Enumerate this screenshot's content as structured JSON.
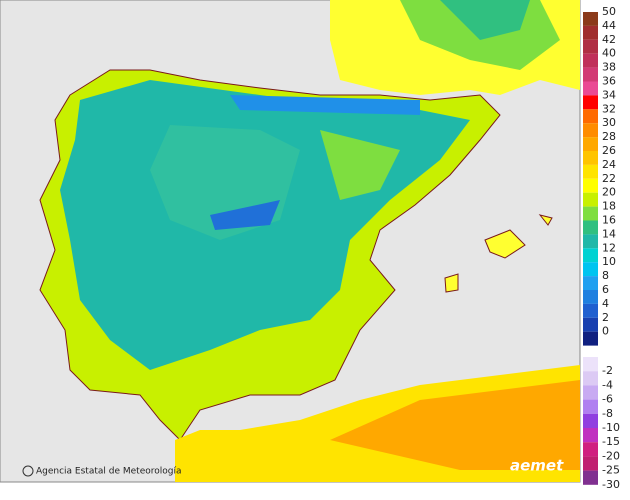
{
  "legend": {
    "positive": [
      {
        "label": 50,
        "color": "#8b3a1a"
      },
      {
        "label": 44,
        "color": "#a02e2e"
      },
      {
        "label": 42,
        "color": "#b02e44"
      },
      {
        "label": 40,
        "color": "#c0305a"
      },
      {
        "label": 38,
        "color": "#d23a74"
      },
      {
        "label": 36,
        "color": "#ea4a94"
      },
      {
        "label": 34,
        "color": "#ff0000"
      },
      {
        "label": 32,
        "color": "#ff6a00"
      },
      {
        "label": 30,
        "color": "#ff8c00"
      },
      {
        "label": 28,
        "color": "#ffa800"
      },
      {
        "label": 26,
        "color": "#ffc400"
      },
      {
        "label": 24,
        "color": "#ffe400"
      },
      {
        "label": 22,
        "color": "#ffff00"
      },
      {
        "label": 20,
        "color": "#c8f000"
      },
      {
        "label": 18,
        "color": "#7ede40"
      },
      {
        "label": 16,
        "color": "#30c080"
      },
      {
        "label": 14,
        "color": "#20b8a8"
      },
      {
        "label": 12,
        "color": "#00d2d2"
      },
      {
        "label": 10,
        "color": "#00c4f0"
      },
      {
        "label": 8,
        "color": "#20a0f0"
      },
      {
        "label": 6,
        "color": "#2080e0"
      },
      {
        "label": 4,
        "color": "#2060d0"
      },
      {
        "label": 2,
        "color": "#1840b0"
      },
      {
        "label": 0,
        "color": "#102080"
      }
    ],
    "negative": [
      {
        "label": -2,
        "color": "#ece2fa"
      },
      {
        "label": -4,
        "color": "#dccaf4"
      },
      {
        "label": -6,
        "color": "#c8aaf2"
      },
      {
        "label": -8,
        "color": "#b080f0"
      },
      {
        "label": -10,
        "color": "#9040e0"
      },
      {
        "label": -15,
        "color": "#c030c0"
      },
      {
        "label": -20,
        "color": "#d02080"
      },
      {
        "label": -25,
        "color": "#c02070"
      },
      {
        "label": -30,
        "color": "#803090"
      }
    ]
  },
  "credit": "Agencia Estatal de Meteorología",
  "logo": "aemet"
}
